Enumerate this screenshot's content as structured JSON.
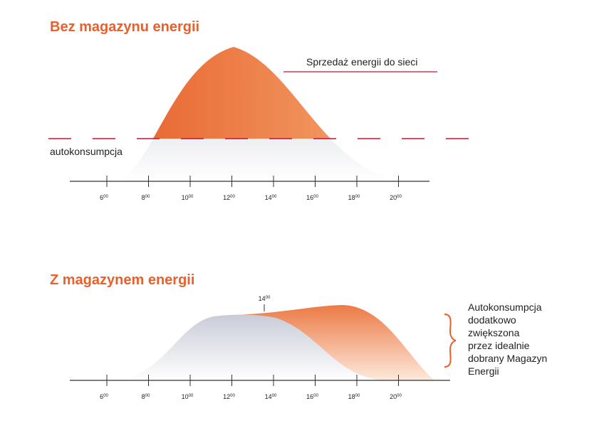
{
  "panel_top": {
    "title": "Bez magazynu energii",
    "sale_label": "Sprzedaż energii do sieci",
    "self_consumption_label": "autokonsumpcja",
    "hours": [
      "6",
      "8",
      "10",
      "12",
      "14",
      "16",
      "18",
      "20"
    ]
  },
  "panel_bottom": {
    "title": "Z magazynem energii",
    "marker_hour": "14",
    "note_lines": [
      "Autokonsumpcja",
      "dodatkowo",
      "zwiększona",
      "przez idealnie",
      "dobrany Magazyn",
      "Energii"
    ],
    "hours": [
      "6",
      "8",
      "10",
      "12",
      "14",
      "16",
      "18",
      "20"
    ]
  },
  "hour_suffix": "00",
  "colors": {
    "accent": "#e8612c",
    "orange_light": "#f4a56e",
    "grey": "#cfd2dc",
    "dashed_line": "#c8102e"
  }
}
